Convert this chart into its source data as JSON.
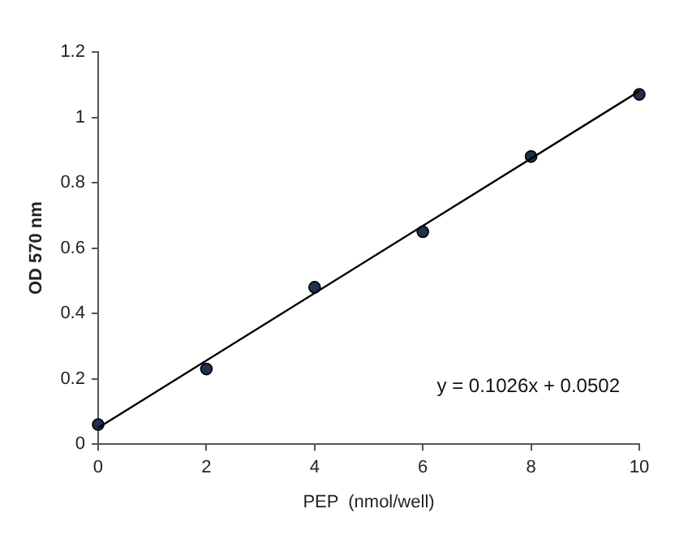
{
  "chart_data": {
    "type": "scatter",
    "xlabel": "PEP  (nmol/well)",
    "ylabel": "OD 570 nm",
    "xlim": [
      0,
      10
    ],
    "xticks": [
      0,
      2,
      4,
      6,
      8,
      10
    ],
    "ylim": [
      0,
      1.2
    ],
    "yticks": [
      0,
      0.2,
      0.4,
      0.6,
      0.8,
      1,
      1.2
    ],
    "grid": false,
    "marker": "circle",
    "series": [
      {
        "color": "#1f3050",
        "x": [
          0,
          2,
          4,
          6,
          8,
          10
        ],
        "values": [
          0.06,
          0.23,
          0.48,
          0.65,
          0.88,
          1.07
        ]
      },
      {
        "type": "line",
        "color": "#000000",
        "line_style": "solid",
        "marker": "none",
        "x": [
          0,
          10
        ],
        "values": [
          0.05,
          1.08
        ]
      }
    ],
    "annotations": [
      "y = 0.1026x + 0.0502"
    ]
  }
}
